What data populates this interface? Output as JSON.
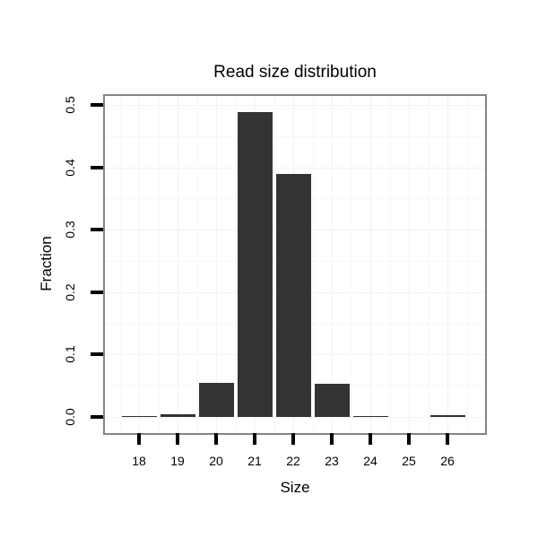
{
  "chart_data": {
    "type": "bar",
    "title": "Read size distribution",
    "xlabel": "Size",
    "ylabel": "Fraction",
    "categories": [
      "18",
      "19",
      "20",
      "21",
      "22",
      "23",
      "24",
      "25",
      "26"
    ],
    "values": [
      0.002,
      0.005,
      0.055,
      0.488,
      0.39,
      0.053,
      0.002,
      0.0,
      0.003
    ],
    "y_ticks": [
      "0.0",
      "0.1",
      "0.2",
      "0.3",
      "0.4",
      "0.5"
    ],
    "ylim": [
      0,
      0.5125
    ],
    "grid": "major and minor, very faint",
    "legend": false,
    "colors": {
      "bar": "#333333",
      "panel_border": "#848484",
      "grid_major": "#f2f2f2",
      "grid_minor": "#f7f7f7",
      "tick": "#000000",
      "text": "#000000",
      "background": "#ffffff"
    }
  }
}
